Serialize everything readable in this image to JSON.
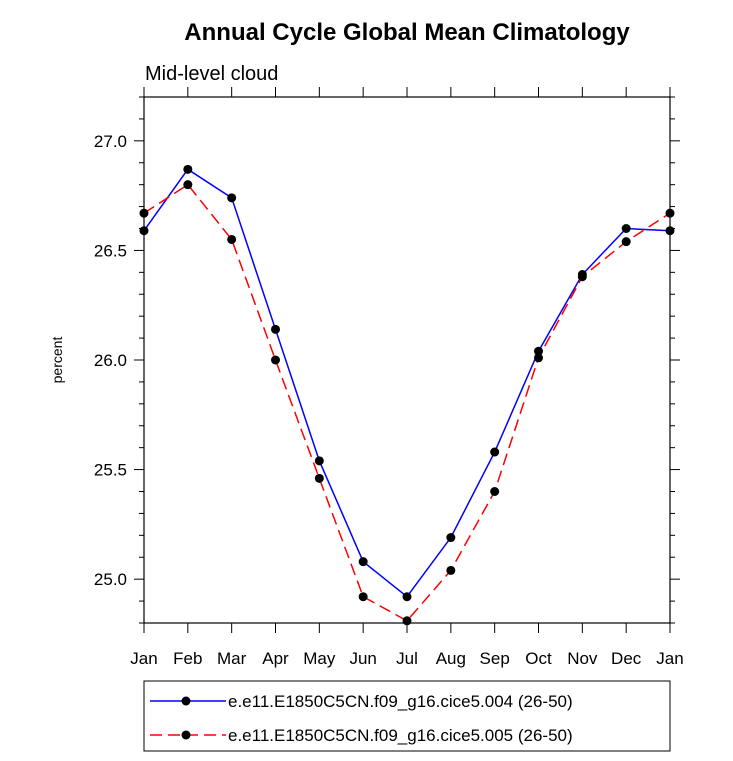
{
  "chart_data": {
    "type": "line",
    "title": "Annual Cycle Global Mean Climatology",
    "subtitle": "Mid-level cloud",
    "xlabel": "",
    "ylabel": "percent",
    "categories": [
      "Jan",
      "Feb",
      "Mar",
      "Apr",
      "May",
      "Jun",
      "Jul",
      "Aug",
      "Sep",
      "Oct",
      "Nov",
      "Dec",
      "Jan"
    ],
    "ylim": [
      24.8,
      27.2
    ],
    "yticks": [
      "25.0",
      "25.5",
      "26.0",
      "26.5",
      "27.0"
    ],
    "series": [
      {
        "name": "e.e11.E1850C5CN.f09_g16.cice5.004 (26-50)",
        "color": "#0000ff",
        "dash": "solid",
        "values": [
          26.59,
          26.87,
          26.74,
          26.14,
          25.54,
          25.08,
          24.92,
          25.19,
          25.58,
          26.04,
          26.39,
          26.6,
          26.59
        ]
      },
      {
        "name": "e.e11.E1850C5CN.f09_g16.cice5.005 (26-50)",
        "color": "#ff0000",
        "dash": "dashed",
        "values": [
          26.67,
          26.8,
          26.55,
          26.0,
          25.46,
          24.92,
          24.81,
          25.04,
          25.4,
          26.01,
          26.38,
          26.54,
          26.67
        ]
      }
    ],
    "grid": false,
    "legend_position": "bottom"
  }
}
